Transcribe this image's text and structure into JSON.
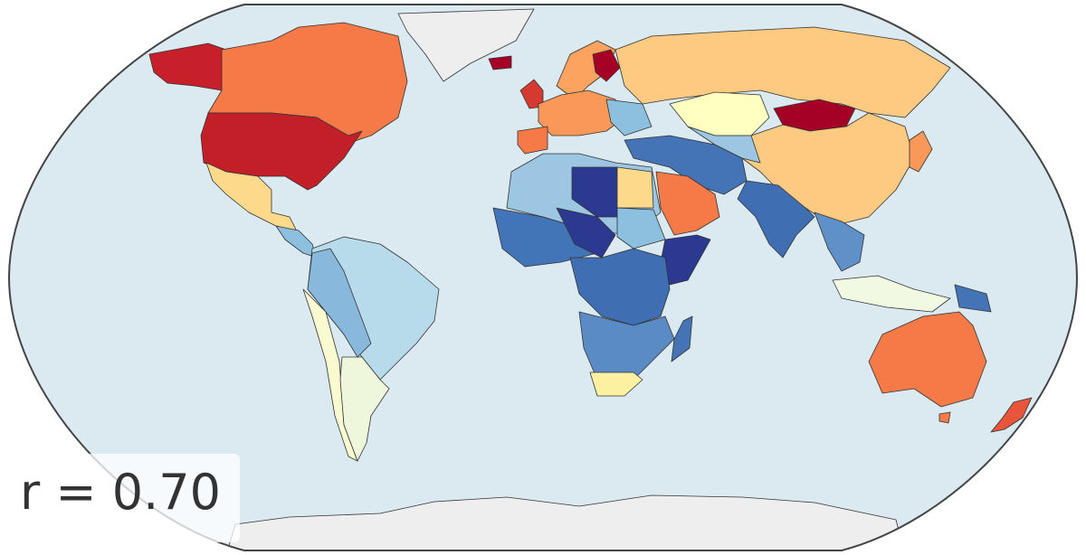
{
  "annotation": "r = 0.70"
}
